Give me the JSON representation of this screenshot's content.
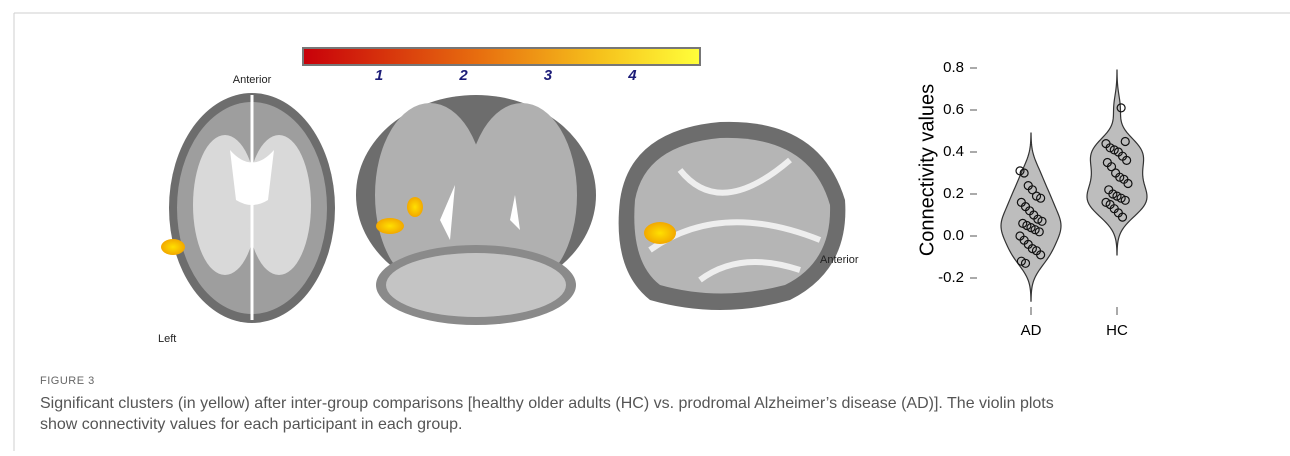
{
  "figure": {
    "colorbar": {
      "lim": [
        0.1,
        4.8
      ],
      "ticks": [
        1,
        2,
        3,
        4
      ]
    },
    "brain_labels": {
      "axial_top": "Anterior",
      "axial_side": "Left",
      "sagittal_side": "Anterior"
    },
    "label": "FIGURE 3",
    "caption": [
      "Significant clusters (in yellow) after inter-group comparisons [healthy older adults (HC) vs. prodromal Alzheimer’s disease (AD)]. The violin plots",
      "show connectivity values for each participant in each group."
    ]
  },
  "chart_data": {
    "type": "violin",
    "y_label": "Connectivity values",
    "categories": [
      "AD",
      "HC"
    ],
    "values": [
      [
        0.31,
        0.3,
        0.24,
        0.22,
        0.19,
        0.18,
        0.16,
        0.14,
        0.12,
        0.1,
        0.08,
        0.07,
        0.06,
        0.05,
        0.04,
        0.03,
        0.02,
        0.0,
        -0.02,
        -0.04,
        -0.06,
        -0.07,
        -0.09,
        -0.12,
        -0.13
      ],
      [
        0.61,
        0.45,
        0.44,
        0.42,
        0.41,
        0.4,
        0.38,
        0.36,
        0.35,
        0.33,
        0.3,
        0.28,
        0.27,
        0.25,
        0.22,
        0.2,
        0.19,
        0.18,
        0.17,
        0.16,
        0.15,
        0.13,
        0.11,
        0.09
      ]
    ],
    "color": "#bdbdbd",
    "ylim": [
      -0.3,
      0.8
    ],
    "yticks": [
      {
        "value": -0.2,
        "label": "-0.2"
      },
      {
        "value": 0,
        "label": "0.0"
      },
      0.2,
      0.4,
      0.6,
      0.8
    ]
  }
}
